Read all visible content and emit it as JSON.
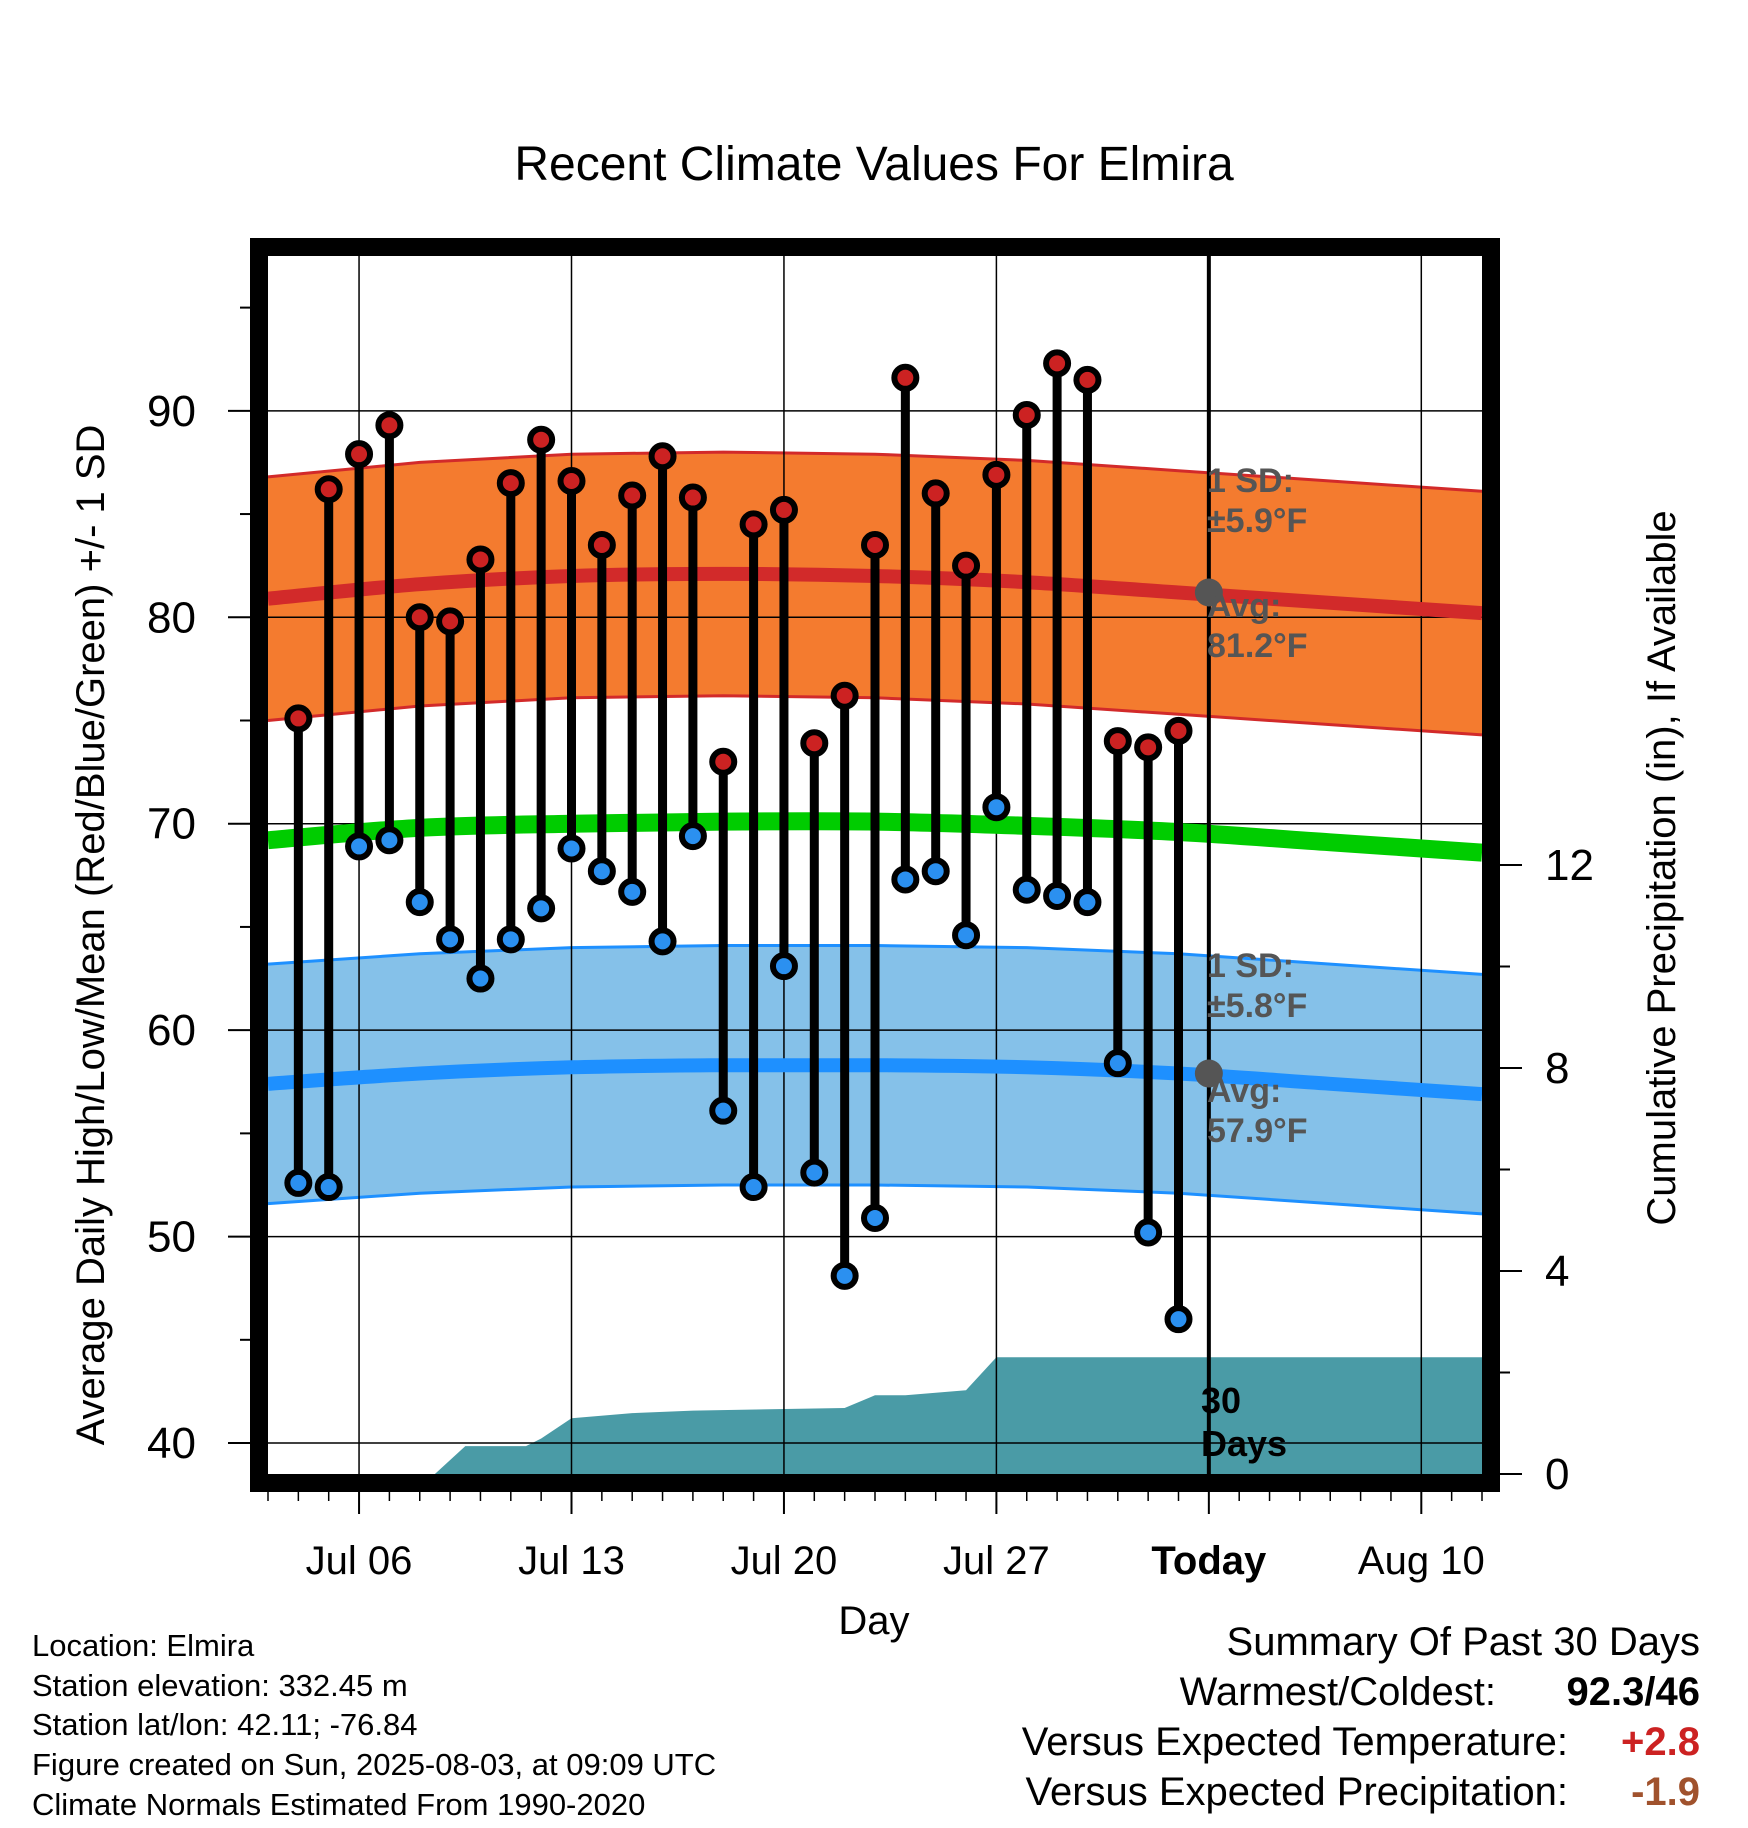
{
  "chart_data": {
    "type": "line",
    "title": "Recent Climate Values For Elmira",
    "xlabel": "Day",
    "ylabel": "Average Daily High/Low/Mean (Red/Blue/Green) +/- 1 SD",
    "y2label": "Cumulative Precipitation (in), If Available",
    "xlim": [
      0,
      40
    ],
    "ylim": [
      38.5,
      97.5
    ],
    "y2lim": [
      0,
      24
    ],
    "yticks": [
      40,
      50,
      60,
      70,
      80,
      90
    ],
    "y2ticks": [
      0,
      4,
      8,
      12
    ],
    "xticks": [
      {
        "x": 3,
        "label": "Jul 06"
      },
      {
        "x": 10,
        "label": "Jul 13"
      },
      {
        "x": 17,
        "label": "Jul 20"
      },
      {
        "x": 24,
        "label": "Jul 27"
      },
      {
        "x": 31,
        "label": "Today"
      },
      {
        "x": 38,
        "label": "Aug 10"
      }
    ],
    "today_x": 31,
    "days": [
      1,
      2,
      3,
      4,
      5,
      6,
      7,
      8,
      9,
      10,
      11,
      12,
      13,
      14,
      15,
      16,
      17,
      18,
      19,
      20,
      21,
      22,
      23,
      24,
      25,
      26,
      27,
      28,
      29,
      30
    ],
    "highs": [
      75.1,
      86.2,
      87.9,
      89.3,
      80.0,
      79.8,
      82.8,
      86.5,
      88.6,
      86.6,
      83.5,
      85.9,
      87.8,
      85.8,
      73.0,
      84.5,
      85.2,
      73.9,
      76.2,
      83.5,
      91.6,
      86.0,
      82.5,
      86.9,
      89.8,
      92.3,
      91.5,
      74.0,
      73.7,
      74.5
    ],
    "lows": [
      52.6,
      52.4,
      68.9,
      69.2,
      66.2,
      64.4,
      62.5,
      64.4,
      65.9,
      68.8,
      67.7,
      66.7,
      64.3,
      69.4,
      56.1,
      52.4,
      63.1,
      53.1,
      48.1,
      50.9,
      67.3,
      67.7,
      64.6,
      70.8,
      66.8,
      66.5,
      66.2,
      58.4,
      50.2,
      46.0
    ],
    "normal_x": [
      0,
      5,
      10,
      15,
      20,
      25,
      30,
      35,
      40
    ],
    "normal_high": [
      80.9,
      81.6,
      82.0,
      82.1,
      82.0,
      81.7,
      81.2,
      80.7,
      80.2
    ],
    "normal_high_sd": 5.9,
    "normal_low": [
      57.4,
      57.9,
      58.2,
      58.3,
      58.3,
      58.2,
      57.9,
      57.4,
      56.9
    ],
    "normal_low_sd": 5.8,
    "normal_mean": [
      69.2,
      69.8,
      70.0,
      70.1,
      70.1,
      69.9,
      69.6,
      69.1,
      68.6
    ],
    "precip_x": [
      5.5,
      6.5,
      8.5,
      9,
      10,
      12,
      14,
      19,
      20,
      21,
      23,
      24,
      27,
      28,
      29,
      40
    ],
    "precip_cum": [
      0,
      0.55,
      0.55,
      0.7,
      1.1,
      1.2,
      1.25,
      1.3,
      1.55,
      1.55,
      1.65,
      2.3,
      2.3,
      2.3,
      2.3,
      2.3
    ],
    "high_sd_label": [
      "1 SD:",
      "±5.9°F"
    ],
    "high_avg_label": [
      "Avg:",
      "81.2°F"
    ],
    "low_sd_label": [
      "1 SD:",
      "±5.8°F"
    ],
    "low_avg_label": [
      "Avg:",
      "57.9°F"
    ],
    "days_label": [
      "30",
      "Days"
    ],
    "colors": {
      "high_band": "#f47b2f",
      "high_line": "#d22a2a",
      "low_band": "#85c1e9",
      "low_line": "#1e90ff",
      "mean_line": "#00cc00",
      "precip": "#4a9ba6",
      "high_dot": "#cc2222",
      "low_dot": "#2b90f0",
      "label_gray": "#555555"
    }
  },
  "info": {
    "location": "Location: Elmira",
    "elevation": "Station elevation: 332.45 m",
    "latlon": "Station lat/lon: 42.11; -76.84",
    "created": "Figure created on Sun, 2025-08-03, at 09:09 UTC",
    "normals": "Climate Normals Estimated From 1990-2020"
  },
  "summary": {
    "title": "Summary Of Past 30 Days",
    "warmest_label": "Warmest/Coldest:",
    "warmest_value": "92.3/46",
    "temp_label": "Versus Expected Temperature:",
    "temp_value": "+2.8",
    "precip_label": "Versus Expected Precipitation:",
    "precip_value": "-1.9",
    "temp_color": "#cc2222",
    "precip_color": "#a0522d"
  }
}
